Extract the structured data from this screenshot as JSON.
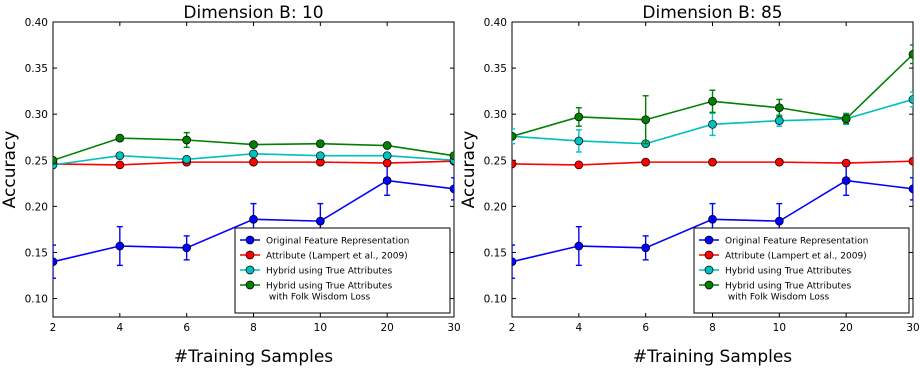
{
  "chart_data": [
    {
      "type": "line",
      "title": "Dimension B: 10",
      "xlabel": "#Training Samples",
      "ylabel": "Accuracy",
      "categories": [
        "2",
        "4",
        "6",
        "8",
        "10",
        "20",
        "30"
      ],
      "ylim": [
        0.08,
        0.4
      ],
      "yticks": [
        "0.10",
        "0.15",
        "0.20",
        "0.25",
        "0.30",
        "0.35",
        "0.40"
      ],
      "legend_position": "lower-right",
      "series": [
        {
          "name": "Original Feature Representation",
          "color": "#0000ff",
          "values": [
            0.14,
            0.157,
            0.155,
            0.186,
            0.184,
            0.228,
            0.219
          ],
          "errors": [
            0.018,
            0.021,
            0.013,
            0.017,
            0.019,
            0.016,
            0.012
          ]
        },
        {
          "name": "Attribute (Lampert et al., 2009)",
          "color": "#ff0000",
          "values": [
            0.246,
            0.245,
            0.248,
            0.248,
            0.248,
            0.247,
            0.249
          ],
          "errors": [
            0.0,
            0.0,
            0.0,
            0.0,
            0.0,
            0.0,
            0.0
          ]
        },
        {
          "name": "Hybrid using True Attributes",
          "color": "#00bfbf",
          "values": [
            0.245,
            0.255,
            0.251,
            0.257,
            0.255,
            0.255,
            0.25
          ],
          "errors": [
            0.0,
            0.0,
            0.0,
            0.0,
            0.0,
            0.0,
            0.0
          ]
        },
        {
          "name": "Hybrid using True Attributes\n with Folk Wisdom Loss",
          "color": "#008000",
          "values": [
            0.25,
            0.274,
            0.272,
            0.267,
            0.268,
            0.266,
            0.255
          ],
          "errors": [
            0.0,
            0.003,
            0.008,
            0.0,
            0.003,
            0.0,
            0.0
          ]
        }
      ]
    },
    {
      "type": "line",
      "title": "Dimension B: 85",
      "xlabel": "#Training Samples",
      "ylabel": "Accuracy",
      "categories": [
        "2",
        "4",
        "6",
        "8",
        "10",
        "20",
        "30"
      ],
      "ylim": [
        0.08,
        0.4
      ],
      "yticks": [
        "0.10",
        "0.15",
        "0.20",
        "0.25",
        "0.30",
        "0.35",
        "0.40"
      ],
      "legend_position": "lower-right",
      "series": [
        {
          "name": "Original Feature Representation",
          "color": "#0000ff",
          "values": [
            0.14,
            0.157,
            0.155,
            0.186,
            0.184,
            0.228,
            0.219
          ],
          "errors": [
            0.018,
            0.021,
            0.013,
            0.017,
            0.019,
            0.016,
            0.012
          ]
        },
        {
          "name": "Attribute (Lampert et al., 2009)",
          "color": "#ff0000",
          "values": [
            0.246,
            0.245,
            0.248,
            0.248,
            0.248,
            0.247,
            0.249
          ],
          "errors": [
            0.0,
            0.0,
            0.0,
            0.0,
            0.0,
            0.0,
            0.0
          ]
        },
        {
          "name": "Hybrid using True Attributes",
          "color": "#00bfbf",
          "values": [
            0.276,
            0.271,
            0.268,
            0.289,
            0.293,
            0.295,
            0.316
          ],
          "errors": [
            0.008,
            0.012,
            0.0,
            0.012,
            0.006,
            0.006,
            0.008
          ]
        },
        {
          "name": "Hybrid using True Attributes\n with Folk Wisdom Loss",
          "color": "#008000",
          "values": [
            0.276,
            0.297,
            0.294,
            0.314,
            0.307,
            0.295,
            0.365
          ],
          "errors": [
            0.0,
            0.01,
            0.026,
            0.012,
            0.009,
            0.005,
            0.01
          ]
        }
      ]
    }
  ]
}
